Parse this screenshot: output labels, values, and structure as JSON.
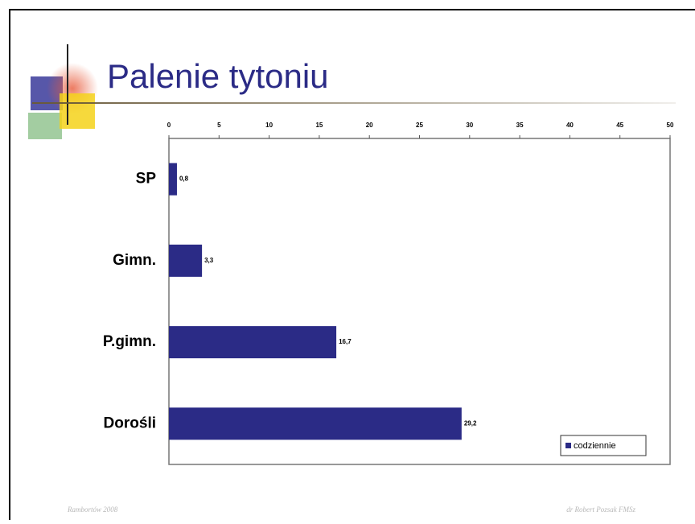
{
  "chart_data": {
    "type": "bar",
    "orientation": "horizontal",
    "title": "Palenie tytoniu",
    "categories": [
      "SP",
      "Gimn.",
      "P.gimn.",
      "Dorośli"
    ],
    "series": [
      {
        "name": "codziennie",
        "color": "#2b2b86",
        "values": [
          0.8,
          3.3,
          16.7,
          29.2
        ],
        "value_labels": [
          "0,8",
          "3,3",
          "16,7",
          "29,2"
        ]
      }
    ],
    "xlim": [
      0,
      50
    ],
    "xticks": [
      0,
      5,
      10,
      15,
      20,
      25,
      30,
      35,
      40,
      45,
      50
    ],
    "legend": "bottom-right"
  },
  "footer": {
    "left": "Rambortów 2008",
    "right": "dr Robert Pozsak FMSz"
  }
}
